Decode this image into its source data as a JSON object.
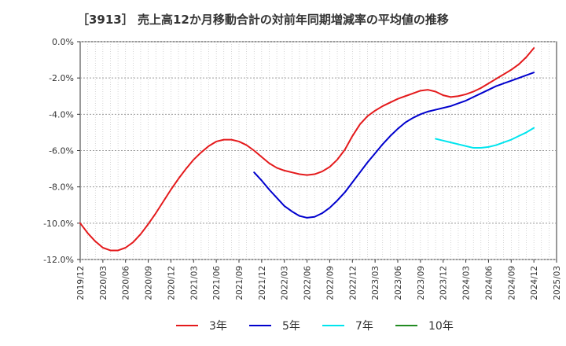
{
  "chart_data": {
    "type": "line",
    "title": "［3913］ 売上高12か月移動合計の対前年同期増減率の平均値の推移",
    "xlabel": "",
    "ylabel": "",
    "ylim": [
      -12,
      0
    ],
    "yticks": [
      0,
      -2,
      -4,
      -6,
      -8,
      -10,
      -12
    ],
    "ytick_labels": [
      "0.0%",
      "-2.0%",
      "-4.0%",
      "-6.0%",
      "-8.0%",
      "-10.0%",
      "-12.0%"
    ],
    "xtick_labels": [
      "2019/12",
      "2020/03",
      "2020/06",
      "2020/09",
      "2020/12",
      "2021/03",
      "2021/06",
      "2021/09",
      "2021/12",
      "2022/03",
      "2022/06",
      "2022/09",
      "2022/12",
      "2023/03",
      "2023/06",
      "2023/09",
      "2023/12",
      "2024/03",
      "2024/06",
      "2024/09",
      "2024/12",
      "2025/03"
    ],
    "grid": true,
    "legend_position": "bottom",
    "series": [
      {
        "name": "3年",
        "color": "#e41a1c",
        "points": [
          [
            "2019/12",
            -10.0
          ],
          [
            "2020/01",
            -10.55
          ],
          [
            "2020/02",
            -11.0
          ],
          [
            "2020/03",
            -11.35
          ],
          [
            "2020/04",
            -11.5
          ],
          [
            "2020/05",
            -11.5
          ],
          [
            "2020/06",
            -11.35
          ],
          [
            "2020/07",
            -11.05
          ],
          [
            "2020/08",
            -10.6
          ],
          [
            "2020/09",
            -10.05
          ],
          [
            "2020/10",
            -9.45
          ],
          [
            "2020/11",
            -8.8
          ],
          [
            "2020/12",
            -8.15
          ],
          [
            "2021/01",
            -7.55
          ],
          [
            "2021/02",
            -7.0
          ],
          [
            "2021/03",
            -6.5
          ],
          [
            "2021/04",
            -6.1
          ],
          [
            "2021/05",
            -5.75
          ],
          [
            "2021/06",
            -5.5
          ],
          [
            "2021/07",
            -5.4
          ],
          [
            "2021/08",
            -5.4
          ],
          [
            "2021/09",
            -5.5
          ],
          [
            "2021/10",
            -5.7
          ],
          [
            "2021/11",
            -6.0
          ],
          [
            "2021/12",
            -6.35
          ],
          [
            "2022/01",
            -6.7
          ],
          [
            "2022/02",
            -6.95
          ],
          [
            "2022/03",
            -7.1
          ],
          [
            "2022/04",
            -7.2
          ],
          [
            "2022/05",
            -7.3
          ],
          [
            "2022/06",
            -7.35
          ],
          [
            "2022/07",
            -7.3
          ],
          [
            "2022/08",
            -7.15
          ],
          [
            "2022/09",
            -6.9
          ],
          [
            "2022/10",
            -6.5
          ],
          [
            "2022/11",
            -5.95
          ],
          [
            "2022/12",
            -5.2
          ],
          [
            "2023/01",
            -4.55
          ],
          [
            "2023/02",
            -4.1
          ],
          [
            "2023/03",
            -3.8
          ],
          [
            "2023/04",
            -3.55
          ],
          [
            "2023/05",
            -3.35
          ],
          [
            "2023/06",
            -3.15
          ],
          [
            "2023/07",
            -3.0
          ],
          [
            "2023/08",
            -2.85
          ],
          [
            "2023/09",
            -2.7
          ],
          [
            "2023/10",
            -2.65
          ],
          [
            "2023/11",
            -2.75
          ],
          [
            "2023/12",
            -2.95
          ],
          [
            "2024/01",
            -3.05
          ],
          [
            "2024/02",
            -3.0
          ],
          [
            "2024/03",
            -2.9
          ],
          [
            "2024/04",
            -2.75
          ],
          [
            "2024/05",
            -2.55
          ],
          [
            "2024/06",
            -2.3
          ],
          [
            "2024/07",
            -2.05
          ],
          [
            "2024/08",
            -1.8
          ],
          [
            "2024/09",
            -1.55
          ],
          [
            "2024/10",
            -1.25
          ],
          [
            "2024/11",
            -0.85
          ],
          [
            "2024/12",
            -0.35
          ]
        ]
      },
      {
        "name": "5年",
        "color": "#0000cd",
        "points": [
          [
            "2021/11",
            -7.2
          ],
          [
            "2021/12",
            -7.65
          ],
          [
            "2022/01",
            -8.15
          ],
          [
            "2022/02",
            -8.6
          ],
          [
            "2022/03",
            -9.05
          ],
          [
            "2022/04",
            -9.35
          ],
          [
            "2022/05",
            -9.6
          ],
          [
            "2022/06",
            -9.7
          ],
          [
            "2022/07",
            -9.65
          ],
          [
            "2022/08",
            -9.45
          ],
          [
            "2022/09",
            -9.15
          ],
          [
            "2022/10",
            -8.75
          ],
          [
            "2022/11",
            -8.3
          ],
          [
            "2022/12",
            -7.75
          ],
          [
            "2023/01",
            -7.2
          ],
          [
            "2023/02",
            -6.65
          ],
          [
            "2023/03",
            -6.15
          ],
          [
            "2023/04",
            -5.65
          ],
          [
            "2023/05",
            -5.2
          ],
          [
            "2023/06",
            -4.8
          ],
          [
            "2023/07",
            -4.45
          ],
          [
            "2023/08",
            -4.2
          ],
          [
            "2023/09",
            -4.0
          ],
          [
            "2023/10",
            -3.85
          ],
          [
            "2023/11",
            -3.75
          ],
          [
            "2023/12",
            -3.65
          ],
          [
            "2024/01",
            -3.55
          ],
          [
            "2024/02",
            -3.4
          ],
          [
            "2024/03",
            -3.25
          ],
          [
            "2024/04",
            -3.05
          ],
          [
            "2024/05",
            -2.85
          ],
          [
            "2024/06",
            -2.65
          ],
          [
            "2024/07",
            -2.45
          ],
          [
            "2024/08",
            -2.3
          ],
          [
            "2024/09",
            -2.15
          ],
          [
            "2024/10",
            -2.0
          ],
          [
            "2024/11",
            -1.85
          ],
          [
            "2024/12",
            -1.7
          ]
        ]
      },
      {
        "name": "7年",
        "color": "#00e5ee",
        "points": [
          [
            "2023/11",
            -5.35
          ],
          [
            "2023/12",
            -5.45
          ],
          [
            "2024/01",
            -5.55
          ],
          [
            "2024/02",
            -5.65
          ],
          [
            "2024/03",
            -5.75
          ],
          [
            "2024/04",
            -5.85
          ],
          [
            "2024/05",
            -5.85
          ],
          [
            "2024/06",
            -5.8
          ],
          [
            "2024/07",
            -5.7
          ],
          [
            "2024/08",
            -5.55
          ],
          [
            "2024/09",
            -5.4
          ],
          [
            "2024/10",
            -5.2
          ],
          [
            "2024/11",
            -5.0
          ],
          [
            "2024/12",
            -4.75
          ]
        ]
      },
      {
        "name": "10年",
        "color": "#228b22",
        "points": []
      }
    ]
  }
}
